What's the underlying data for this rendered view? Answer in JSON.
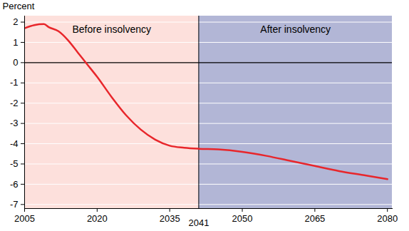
{
  "chart_data": {
    "type": "line",
    "ylabel": "Percent",
    "x": [
      2005,
      2007,
      2009,
      2010,
      2012,
      2014,
      2016,
      2018,
      2020,
      2023,
      2026,
      2029,
      2032,
      2035,
      2038,
      2041,
      2045,
      2050,
      2055,
      2060,
      2065,
      2070,
      2075,
      2080
    ],
    "series": [
      {
        "name": "Percent",
        "color": "#e8262b",
        "values": [
          1.7,
          1.85,
          1.9,
          1.75,
          1.55,
          1.1,
          0.5,
          -0.1,
          -0.7,
          -1.7,
          -2.6,
          -3.3,
          -3.8,
          -4.1,
          -4.2,
          -4.25,
          -4.28,
          -4.4,
          -4.6,
          -4.85,
          -5.1,
          -5.35,
          -5.55,
          -5.75
        ]
      }
    ],
    "xlim": [
      2005,
      2081
    ],
    "ylim": [
      -7.2,
      2.3
    ],
    "xticks": [
      2005,
      2020,
      2035,
      2050,
      2065,
      2080
    ],
    "yticks": [
      -7,
      -6,
      -5,
      -4,
      -3,
      -2,
      -1,
      0,
      1,
      2
    ],
    "divider": 2041,
    "regions": [
      {
        "label": "Before insolvency",
        "start": 2005,
        "end": 2041,
        "color": "#fde0dc"
      },
      {
        "label": "After insolvency",
        "start": 2041,
        "end": 2081,
        "color": "#b2b6d6"
      }
    ],
    "grid": true
  }
}
